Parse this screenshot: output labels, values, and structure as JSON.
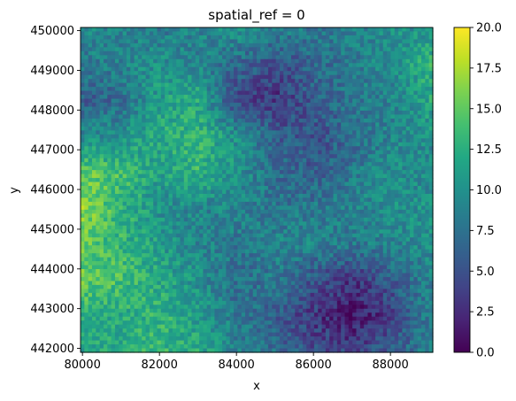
{
  "chart_data": {
    "type": "heatmap",
    "title": "spatial_ref = 0",
    "xlabel": "x",
    "ylabel": "y",
    "xlim": [
      79950,
      89100
    ],
    "ylim": [
      441900,
      450080
    ],
    "xticks": [
      {
        "value": 80000,
        "label": "80000"
      },
      {
        "value": 82000,
        "label": "82000"
      },
      {
        "value": 84000,
        "label": "84000"
      },
      {
        "value": 86000,
        "label": "86000"
      },
      {
        "value": 88000,
        "label": "88000"
      }
    ],
    "yticks": [
      {
        "value": 442000,
        "label": "442000"
      },
      {
        "value": 443000,
        "label": "443000"
      },
      {
        "value": 444000,
        "label": "444000"
      },
      {
        "value": 445000,
        "label": "445000"
      },
      {
        "value": 446000,
        "label": "446000"
      },
      {
        "value": 447000,
        "label": "447000"
      },
      {
        "value": 448000,
        "label": "448000"
      },
      {
        "value": 449000,
        "label": "449000"
      },
      {
        "value": 450000,
        "label": "450000"
      }
    ],
    "colormap": "viridis",
    "colorbar": {
      "range": [
        0,
        20
      ],
      "ticks": [
        {
          "value": 0,
          "label": "0.0"
        },
        {
          "value": 2.5,
          "label": "2.5"
        },
        {
          "value": 5,
          "label": "5.0"
        },
        {
          "value": 7.5,
          "label": "7.5"
        },
        {
          "value": 10,
          "label": "10.0"
        },
        {
          "value": 12.5,
          "label": "12.5"
        },
        {
          "value": 15,
          "label": "15.0"
        },
        {
          "value": 17.5,
          "label": "17.5"
        },
        {
          "value": 20,
          "label": "20.0"
        }
      ]
    },
    "value_field_approx": {
      "grid_note": "coarse approximation of raster values, rows from top (y=450000) to bottom (y=442000), columns from left (x=80000) to right (x=89000)",
      "rows": [
        [
          9,
          9,
          8,
          9,
          10,
          9,
          8,
          9,
          10,
          10
        ],
        [
          8,
          9,
          10,
          9,
          7,
          5,
          7,
          8,
          10,
          13
        ],
        [
          6,
          7,
          11,
          12,
          4,
          3,
          6,
          8,
          9,
          12
        ],
        [
          9,
          10,
          12,
          13,
          10,
          6,
          5,
          7,
          9,
          10
        ],
        [
          15,
          14,
          11,
          13,
          10,
          7,
          6,
          8,
          10,
          9
        ],
        [
          17,
          13,
          10,
          9,
          9,
          8,
          8,
          9,
          10,
          10
        ],
        [
          15,
          13,
          11,
          9,
          8,
          9,
          9,
          8,
          9,
          10
        ],
        [
          15,
          14,
          12,
          10,
          7,
          8,
          5,
          3,
          6,
          9
        ],
        [
          13,
          12,
          13,
          11,
          8,
          6,
          3,
          1,
          4,
          9
        ],
        [
          11,
          12,
          13,
          12,
          9,
          7,
          5,
          4,
          6,
          9
        ]
      ]
    }
  }
}
